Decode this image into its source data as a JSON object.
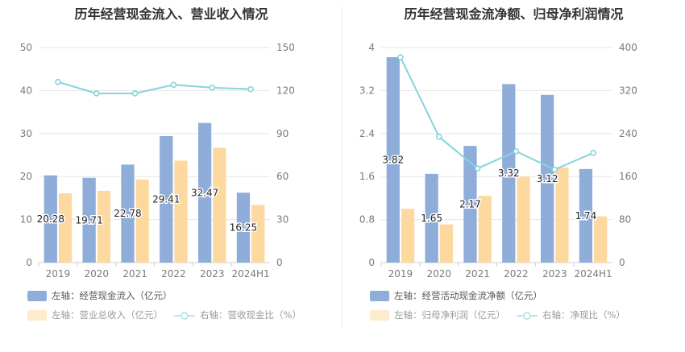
{
  "colors": {
    "bar_blue": "#8eadd9",
    "bar_orange": "#fdd9a0",
    "line_teal": "#86d4dc",
    "grid": "#e6e6e6",
    "axis_text": "#7a7a7a"
  },
  "left_chart": {
    "title": "历年经营现金流入、营业收入情况",
    "legend": {
      "series1": "左轴：经营现金流入（亿元）",
      "series2": "左轴：营业总收入（亿元）",
      "series3": "右轴：营收现金比（%）"
    }
  },
  "right_chart": {
    "title": "历年经营现金流净额、归母净利润情况",
    "legend": {
      "series1": "左轴：经营活动现金流净额（亿元）",
      "series2": "左轴：归母净利润（亿元）",
      "series3": "右轴：净现比（%）"
    }
  },
  "chart_data": [
    {
      "type": "bar",
      "title": "历年经营现金流入、营业收入情况",
      "categories": [
        "2019",
        "2020",
        "2021",
        "2022",
        "2023",
        "2024H1"
      ],
      "y_left": {
        "range": [
          0,
          50
        ],
        "ticks": [
          "0",
          "10",
          "20",
          "30",
          "40",
          "50"
        ]
      },
      "y_right": {
        "range": [
          0,
          150
        ],
        "ticks": [
          "0",
          "30",
          "60",
          "90",
          "120",
          "150"
        ]
      },
      "series": [
        {
          "name": "左轴：经营现金流入（亿元）",
          "type": "bar",
          "axis": "left",
          "values": [
            20.28,
            19.71,
            22.78,
            29.41,
            32.47,
            16.25
          ],
          "labels": [
            "20.28",
            "19.71",
            "22.78",
            "29.41",
            "32.47",
            "16.25"
          ]
        },
        {
          "name": "左轴：营业总收入（亿元）",
          "type": "bar",
          "axis": "left",
          "values": [
            16.1,
            16.7,
            19.3,
            23.7,
            26.7,
            13.4
          ]
        },
        {
          "name": "右轴：营收现金比（%）",
          "type": "line",
          "axis": "right",
          "values": [
            126,
            118,
            118,
            124,
            122,
            121
          ]
        }
      ],
      "grid": true,
      "legend_position": "bottom"
    },
    {
      "type": "bar",
      "title": "历年经营现金流净额、归母净利润情况",
      "categories": [
        "2019",
        "2020",
        "2021",
        "2022",
        "2023",
        "2024H1"
      ],
      "y_left": {
        "range": [
          0,
          4
        ],
        "ticks": [
          "0",
          "0.8",
          "1.6",
          "2.4",
          "3.2",
          "4"
        ]
      },
      "y_right": {
        "range": [
          0,
          400
        ],
        "ticks": [
          "0",
          "80",
          "160",
          "240",
          "320",
          "400"
        ]
      },
      "series": [
        {
          "name": "左轴：经营活动现金流净额（亿元）",
          "type": "bar",
          "axis": "left",
          "values": [
            3.82,
            1.65,
            2.17,
            3.32,
            3.12,
            1.74
          ],
          "labels": [
            "3.82",
            "1.65",
            "2.17",
            "3.32",
            "3.12",
            "1.74"
          ]
        },
        {
          "name": "左轴：归母净利润（亿元）",
          "type": "bar",
          "axis": "left",
          "values": [
            1.0,
            0.71,
            1.24,
            1.6,
            1.77,
            0.86
          ]
        },
        {
          "name": "右轴：净现比（%）",
          "type": "line",
          "axis": "right",
          "values": [
            382,
            234,
            175,
            207,
            173,
            204
          ]
        }
      ],
      "grid": true,
      "legend_position": "bottom"
    }
  ]
}
